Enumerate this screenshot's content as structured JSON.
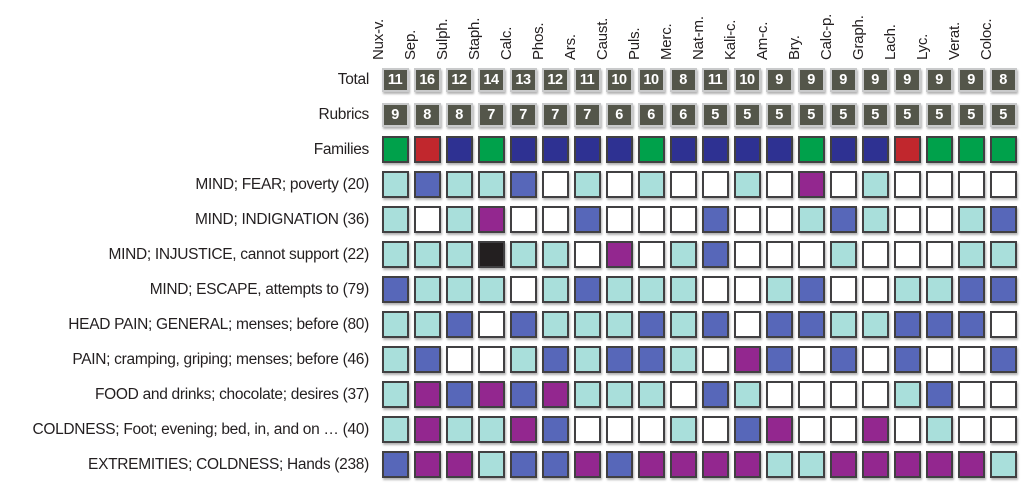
{
  "chart_data": {
    "type": "heatmap",
    "columns": [
      "Nux-v.",
      "Sep.",
      "Sulph.",
      "Staph.",
      "Calc.",
      "Phos.",
      "Ars.",
      "Caust.",
      "Puls.",
      "Merc.",
      "Nat-m.",
      "Kali-c.",
      "Am-c.",
      "Bry.",
      "Calc-p.",
      "Graph.",
      "Lach.",
      "Lyc.",
      "Verat.",
      "Coloc."
    ],
    "number_rows": [
      {
        "label": "Total",
        "values": [
          11,
          16,
          12,
          14,
          13,
          12,
          11,
          10,
          10,
          8,
          11,
          10,
          9,
          9,
          9,
          9,
          9,
          9,
          9,
          8
        ]
      },
      {
        "label": "Rubrics",
        "values": [
          9,
          8,
          8,
          7,
          7,
          7,
          7,
          6,
          6,
          6,
          5,
          5,
          5,
          5,
          5,
          5,
          5,
          5,
          5,
          5
        ]
      }
    ],
    "color_rows": [
      {
        "label": "Families",
        "cells": [
          "green",
          "red",
          "navy",
          "green",
          "navy",
          "navy",
          "navy",
          "navy",
          "green",
          "navy",
          "navy",
          "navy",
          "navy",
          "green",
          "navy",
          "navy",
          "red",
          "green",
          "green",
          "green"
        ]
      },
      {
        "label": "MIND; FEAR; poverty (20)",
        "cells": [
          "cyan",
          "blue",
          "cyan",
          "cyan",
          "blue",
          "white",
          "cyan",
          "white",
          "cyan",
          "white",
          "white",
          "cyan",
          "white",
          "purple",
          "white",
          "cyan",
          "white",
          "white",
          "white",
          "white"
        ]
      },
      {
        "label": "MIND; INDIGNATION (36)",
        "cells": [
          "cyan",
          "white",
          "cyan",
          "purple",
          "white",
          "white",
          "blue",
          "white",
          "white",
          "white",
          "blue",
          "white",
          "white",
          "cyan",
          "blue",
          "cyan",
          "white",
          "white",
          "cyan",
          "blue"
        ]
      },
      {
        "label": "MIND; INJUSTICE, cannot support (22)",
        "cells": [
          "cyan",
          "cyan",
          "cyan",
          "black",
          "cyan",
          "cyan",
          "white",
          "purple",
          "white",
          "cyan",
          "blue",
          "white",
          "white",
          "white",
          "cyan",
          "white",
          "white",
          "white",
          "cyan",
          "cyan"
        ]
      },
      {
        "label": "MIND; ESCAPE, attempts to (79)",
        "cells": [
          "blue",
          "cyan",
          "cyan",
          "cyan",
          "white",
          "cyan",
          "blue",
          "cyan",
          "cyan",
          "cyan",
          "white",
          "white",
          "cyan",
          "blue",
          "white",
          "white",
          "cyan",
          "cyan",
          "blue",
          "blue"
        ]
      },
      {
        "label": "HEAD PAIN; GENERAL; menses; before (80)",
        "cells": [
          "cyan",
          "cyan",
          "blue",
          "white",
          "blue",
          "cyan",
          "cyan",
          "cyan",
          "blue",
          "cyan",
          "blue",
          "white",
          "blue",
          "blue",
          "cyan",
          "cyan",
          "blue",
          "blue",
          "blue",
          "white"
        ]
      },
      {
        "label": "PAIN; cramping, griping; menses; before (46)",
        "cells": [
          "cyan",
          "blue",
          "white",
          "white",
          "cyan",
          "blue",
          "cyan",
          "blue",
          "blue",
          "cyan",
          "white",
          "purple",
          "blue",
          "white",
          "blue",
          "white",
          "blue",
          "white",
          "white",
          "blue"
        ]
      },
      {
        "label": "FOOD and drinks; chocolate; desires (37)",
        "cells": [
          "cyan",
          "purple",
          "blue",
          "purple",
          "blue",
          "purple",
          "cyan",
          "cyan",
          "cyan",
          "white",
          "blue",
          "cyan",
          "white",
          "white",
          "white",
          "white",
          "cyan",
          "blue",
          "white",
          "white"
        ]
      },
      {
        "label": "COLDNESS; Foot; evening; bed, in, and on … (40)",
        "cells": [
          "cyan",
          "purple",
          "cyan",
          "cyan",
          "purple",
          "blue",
          "white",
          "white",
          "white",
          "cyan",
          "white",
          "blue",
          "purple",
          "white",
          "white",
          "purple",
          "white",
          "cyan",
          "white",
          "white"
        ]
      },
      {
        "label": "EXTREMITIES; COLDNESS; Hands (238)",
        "cells": [
          "blue",
          "purple",
          "purple",
          "cyan",
          "blue",
          "blue",
          "purple",
          "blue",
          "purple",
          "purple",
          "purple",
          "purple",
          "cyan",
          "cyan",
          "purple",
          "purple",
          "purple",
          "purple",
          "purple",
          "cyan"
        ]
      }
    ],
    "palette": {
      "green": "#00A14B",
      "red": "#C1272D",
      "navy": "#2E3192",
      "blue": "#5767B9",
      "cyan": "#A9DFDB",
      "purple": "#93278F",
      "black": "#231F20",
      "white": "#FFFFFF",
      "header_square_bg": "#54564A",
      "header_square_border": "#C9CACB",
      "cell_border": "#414042"
    }
  }
}
